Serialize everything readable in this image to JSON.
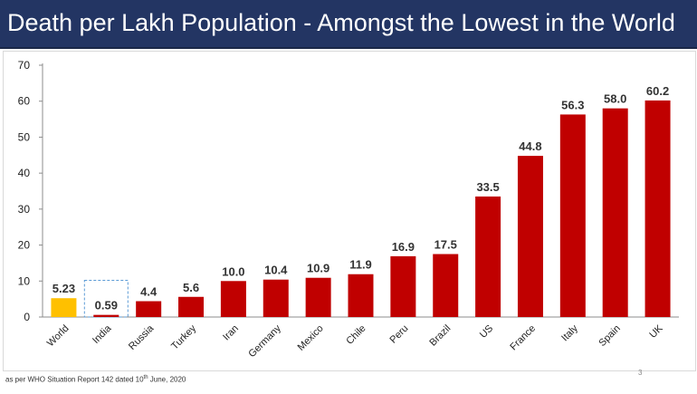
{
  "slide": {
    "title": "Death per Lakh Population - Amongst the Lowest in the World",
    "footnote_prefix": "as per WHO Situation Report 142 dated 10",
    "footnote_sup": "th",
    "footnote_suffix": " June, 2020",
    "page_number": "3"
  },
  "colors": {
    "title_bg": "#233563",
    "bar": "#C00000",
    "world_bar": "#FFC000",
    "india_bar": "#C00000",
    "india_highlight_border": "#5B9BD5"
  },
  "chart_data": {
    "type": "bar",
    "title": "",
    "xlabel": "",
    "ylabel": "",
    "ylim": [
      0,
      70
    ],
    "yticks": [
      0,
      10,
      20,
      30,
      40,
      50,
      60,
      70
    ],
    "grid": false,
    "legend": "none",
    "categories": [
      "World",
      "India",
      "Russia",
      "Turkey",
      "Iran",
      "Germany",
      "Mexico",
      "Chile",
      "Peru",
      "Brazil",
      "US",
      "France",
      "Italy",
      "Spain",
      "UK"
    ],
    "values": [
      5.23,
      0.59,
      4.4,
      5.6,
      10.0,
      10.4,
      10.9,
      11.9,
      16.9,
      17.5,
      33.5,
      44.8,
      56.3,
      58.0,
      60.2
    ],
    "value_labels": [
      "5.23",
      "0.59",
      "4.4",
      "5.6",
      "10.0",
      "10.4",
      "10.9",
      "11.9",
      "16.9",
      "17.5",
      "33.5",
      "44.8",
      "56.3",
      "58.0",
      "60.2"
    ],
    "highlight": {
      "World": "yellow-bar",
      "India": "dashed-box"
    }
  }
}
